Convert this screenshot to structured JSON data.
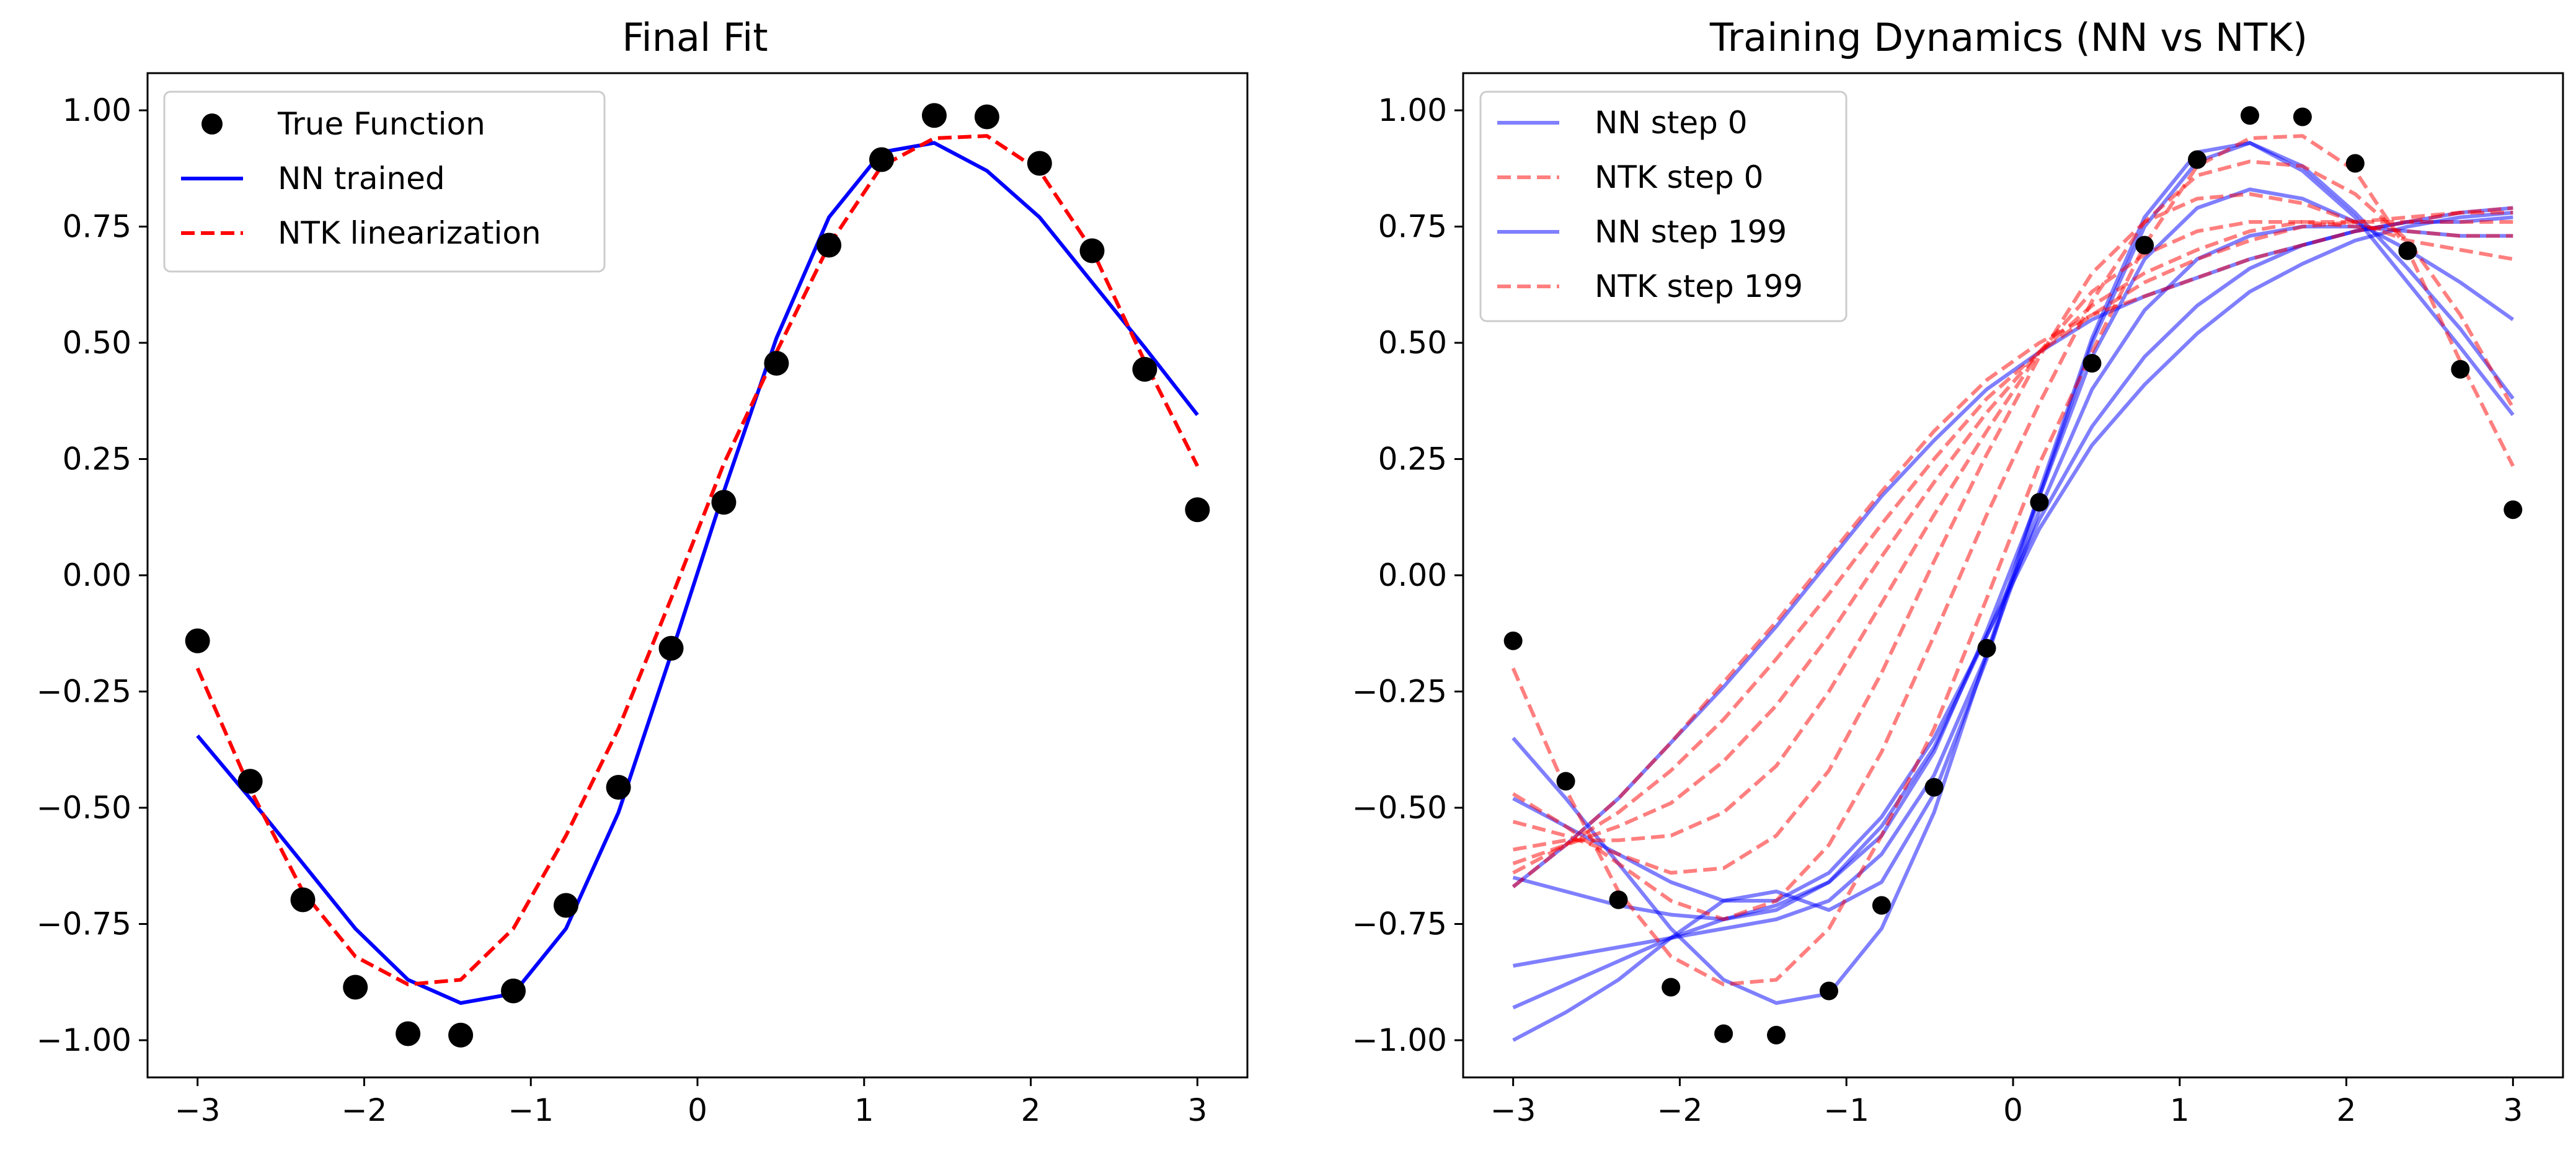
{
  "chart_data": [
    {
      "type": "line",
      "title": "Final Fit",
      "xlabel": "",
      "ylabel": "",
      "xlim": [
        -3.3,
        3.3
      ],
      "ylim": [
        -1.08,
        1.08
      ],
      "grid": false,
      "legend_placement": "upper-left",
      "xticks": [
        -3,
        -2,
        -1,
        0,
        1,
        2,
        3
      ],
      "xtick_labels": [
        "−3",
        "−2",
        "−1",
        "0",
        "1",
        "2",
        "3"
      ],
      "yticks": [
        -1.0,
        -0.75,
        -0.5,
        -0.25,
        0.0,
        0.25,
        0.5,
        0.75,
        1.0
      ],
      "ytick_labels": [
        "−1.00",
        "−0.75",
        "−0.50",
        "−0.25",
        "0.00",
        "0.25",
        "0.50",
        "0.75",
        "1.00"
      ],
      "series": [
        {
          "name": "True Function",
          "kind": "scatter",
          "color": "#000000",
          "x": [
            -3.0,
            -2.684,
            -2.368,
            -2.053,
            -1.737,
            -1.421,
            -1.105,
            -0.789,
            -0.474,
            -0.158,
            0.158,
            0.474,
            0.789,
            1.105,
            1.421,
            1.737,
            2.053,
            2.368,
            2.684,
            3.0
          ],
          "y": [
            -0.141,
            -0.443,
            -0.698,
            -0.886,
            -0.986,
            -0.989,
            -0.894,
            -0.71,
            -0.456,
            -0.157,
            0.157,
            0.456,
            0.71,
            0.894,
            0.989,
            0.986,
            0.886,
            0.698,
            0.443,
            0.141
          ]
        },
        {
          "name": "NN trained",
          "kind": "line",
          "color": "#0000ff",
          "dash": "solid",
          "x": [
            -3.0,
            -2.684,
            -2.368,
            -2.053,
            -1.737,
            -1.421,
            -1.105,
            -0.789,
            -0.474,
            -0.158,
            0.158,
            0.474,
            0.789,
            1.105,
            1.421,
            1.737,
            2.053,
            2.368,
            2.684,
            3.0
          ],
          "y": [
            -0.345,
            -0.48,
            -0.62,
            -0.76,
            -0.87,
            -0.92,
            -0.9,
            -0.76,
            -0.51,
            -0.17,
            0.18,
            0.51,
            0.77,
            0.91,
            0.93,
            0.87,
            0.77,
            0.63,
            0.49,
            0.345
          ]
        },
        {
          "name": "NTK linearization",
          "kind": "line",
          "color": "#ff0000",
          "dash": "dashed",
          "x": [
            -3.0,
            -2.684,
            -2.368,
            -2.053,
            -1.737,
            -1.421,
            -1.105,
            -0.789,
            -0.474,
            -0.158,
            0.158,
            0.474,
            0.789,
            1.105,
            1.421,
            1.737,
            2.053,
            2.368,
            2.684,
            3.0
          ],
          "y": [
            -0.2,
            -0.46,
            -0.68,
            -0.82,
            -0.88,
            -0.87,
            -0.76,
            -0.56,
            -0.33,
            -0.05,
            0.24,
            0.48,
            0.71,
            0.88,
            0.94,
            0.945,
            0.87,
            0.7,
            0.46,
            0.235
          ]
        }
      ],
      "legend": [
        {
          "label": "True Function",
          "style": "marker",
          "color": "#000000"
        },
        {
          "label": "NN trained",
          "style": "solid",
          "color": "#0000ff"
        },
        {
          "label": "NTK linearization",
          "style": "dashed",
          "color": "#ff0000"
        }
      ]
    },
    {
      "type": "line",
      "title": "Training Dynamics (NN vs NTK)",
      "xlabel": "",
      "ylabel": "",
      "xlim": [
        -3.3,
        3.3
      ],
      "ylim": [
        -1.08,
        1.08
      ],
      "grid": false,
      "legend_placement": "upper-left",
      "xticks": [
        -3,
        -2,
        -1,
        0,
        1,
        2,
        3
      ],
      "xtick_labels": [
        "−3",
        "−2",
        "−1",
        "0",
        "1",
        "2",
        "3"
      ],
      "yticks": [
        -1.0,
        -0.75,
        -0.5,
        -0.25,
        0.0,
        0.25,
        0.5,
        0.75,
        1.0
      ],
      "ytick_labels": [
        "−1.00",
        "−0.75",
        "−0.50",
        "−0.25",
        "0.00",
        "0.25",
        "0.50",
        "0.75",
        "1.00"
      ],
      "x": [
        -3.0,
        -2.684,
        -2.368,
        -2.053,
        -1.737,
        -1.421,
        -1.105,
        -0.789,
        -0.474,
        -0.158,
        0.158,
        0.474,
        0.789,
        1.105,
        1.421,
        1.737,
        2.053,
        2.368,
        2.684,
        3.0
      ],
      "scatter": {
        "color": "#000000",
        "y": [
          -0.141,
          -0.443,
          -0.698,
          -0.886,
          -0.986,
          -0.989,
          -0.894,
          -0.71,
          -0.456,
          -0.157,
          0.157,
          0.456,
          0.71,
          0.894,
          0.989,
          0.986,
          0.886,
          0.698,
          0.443,
          0.141
        ]
      },
      "nn_curves": {
        "color": "#0000ff",
        "opacity": 0.5,
        "dash": "solid",
        "y": [
          [
            -0.67,
            -0.58,
            -0.48,
            -0.36,
            -0.24,
            -0.11,
            0.03,
            0.17,
            0.29,
            0.4,
            0.48,
            0.55,
            0.6,
            0.64,
            0.68,
            0.71,
            0.74,
            0.76,
            0.78,
            0.79
          ],
          [
            -0.48,
            -0.54,
            -0.6,
            -0.66,
            -0.7,
            -0.7,
            -0.64,
            -0.52,
            -0.35,
            -0.13,
            0.1,
            0.28,
            0.41,
            0.52,
            0.61,
            0.67,
            0.72,
            0.75,
            0.77,
            0.78
          ],
          [
            -0.65,
            -0.68,
            -0.71,
            -0.73,
            -0.74,
            -0.72,
            -0.66,
            -0.54,
            -0.37,
            -0.13,
            0.12,
            0.32,
            0.47,
            0.58,
            0.66,
            0.71,
            0.74,
            0.76,
            0.76,
            0.77
          ],
          [
            -0.84,
            -0.82,
            -0.8,
            -0.78,
            -0.76,
            -0.74,
            -0.7,
            -0.6,
            -0.43,
            -0.17,
            0.14,
            0.4,
            0.57,
            0.68,
            0.73,
            0.75,
            0.75,
            0.74,
            0.73,
            0.73
          ],
          [
            -0.93,
            -0.88,
            -0.83,
            -0.78,
            -0.74,
            -0.71,
            -0.66,
            -0.56,
            -0.38,
            -0.12,
            0.17,
            0.47,
            0.68,
            0.79,
            0.83,
            0.81,
            0.76,
            0.7,
            0.63,
            0.55
          ],
          [
            -1.0,
            -0.94,
            -0.87,
            -0.78,
            -0.7,
            -0.68,
            -0.72,
            -0.66,
            -0.47,
            -0.18,
            0.17,
            0.5,
            0.75,
            0.89,
            0.93,
            0.88,
            0.78,
            0.66,
            0.53,
            0.38
          ],
          [
            -0.35,
            -0.48,
            -0.62,
            -0.76,
            -0.87,
            -0.92,
            -0.9,
            -0.76,
            -0.51,
            -0.17,
            0.18,
            0.51,
            0.77,
            0.91,
            0.93,
            0.87,
            0.77,
            0.63,
            0.49,
            0.345
          ]
        ]
      },
      "ntk_curves": {
        "color": "#ff0000",
        "opacity": 0.5,
        "dash": "dashed",
        "y": [
          [
            -0.67,
            -0.58,
            -0.48,
            -0.36,
            -0.23,
            -0.1,
            0.04,
            0.18,
            0.31,
            0.42,
            0.5,
            0.56,
            0.6,
            0.64,
            0.68,
            0.71,
            0.74,
            0.76,
            0.78,
            0.79
          ],
          [
            -0.64,
            -0.58,
            -0.51,
            -0.42,
            -0.31,
            -0.18,
            -0.04,
            0.11,
            0.25,
            0.38,
            0.48,
            0.56,
            0.63,
            0.68,
            0.72,
            0.75,
            0.76,
            0.77,
            0.78,
            0.78
          ],
          [
            -0.62,
            -0.58,
            -0.54,
            -0.49,
            -0.4,
            -0.28,
            -0.13,
            0.04,
            0.2,
            0.35,
            0.48,
            0.58,
            0.65,
            0.7,
            0.74,
            0.76,
            0.76,
            0.76,
            0.76,
            0.76
          ],
          [
            -0.59,
            -0.57,
            -0.57,
            -0.56,
            -0.51,
            -0.41,
            -0.25,
            -0.06,
            0.13,
            0.31,
            0.48,
            0.61,
            0.69,
            0.74,
            0.76,
            0.76,
            0.75,
            0.74,
            0.73,
            0.73
          ],
          [
            -0.53,
            -0.56,
            -0.6,
            -0.64,
            -0.63,
            -0.56,
            -0.42,
            -0.21,
            0.03,
            0.26,
            0.47,
            0.65,
            0.76,
            0.81,
            0.82,
            0.8,
            0.76,
            0.72,
            0.7,
            0.68
          ],
          [
            -0.47,
            -0.54,
            -0.62,
            -0.7,
            -0.74,
            -0.7,
            -0.58,
            -0.38,
            -0.13,
            0.13,
            0.37,
            0.59,
            0.76,
            0.86,
            0.89,
            0.88,
            0.82,
            0.72,
            0.56,
            0.36
          ],
          [
            -0.2,
            -0.46,
            -0.68,
            -0.82,
            -0.88,
            -0.87,
            -0.76,
            -0.56,
            -0.33,
            -0.05,
            0.24,
            0.48,
            0.71,
            0.88,
            0.94,
            0.945,
            0.87,
            0.7,
            0.46,
            0.235
          ]
        ]
      },
      "legend": [
        {
          "label": "NN step 0",
          "style": "solid",
          "color": "#0000ff"
        },
        {
          "label": "NTK step 0",
          "style": "dashed",
          "color": "#ff0000"
        },
        {
          "label": "NN step 199",
          "style": "solid",
          "color": "#0000ff"
        },
        {
          "label": "NTK step 199",
          "style": "dashed",
          "color": "#ff0000"
        }
      ]
    }
  ]
}
